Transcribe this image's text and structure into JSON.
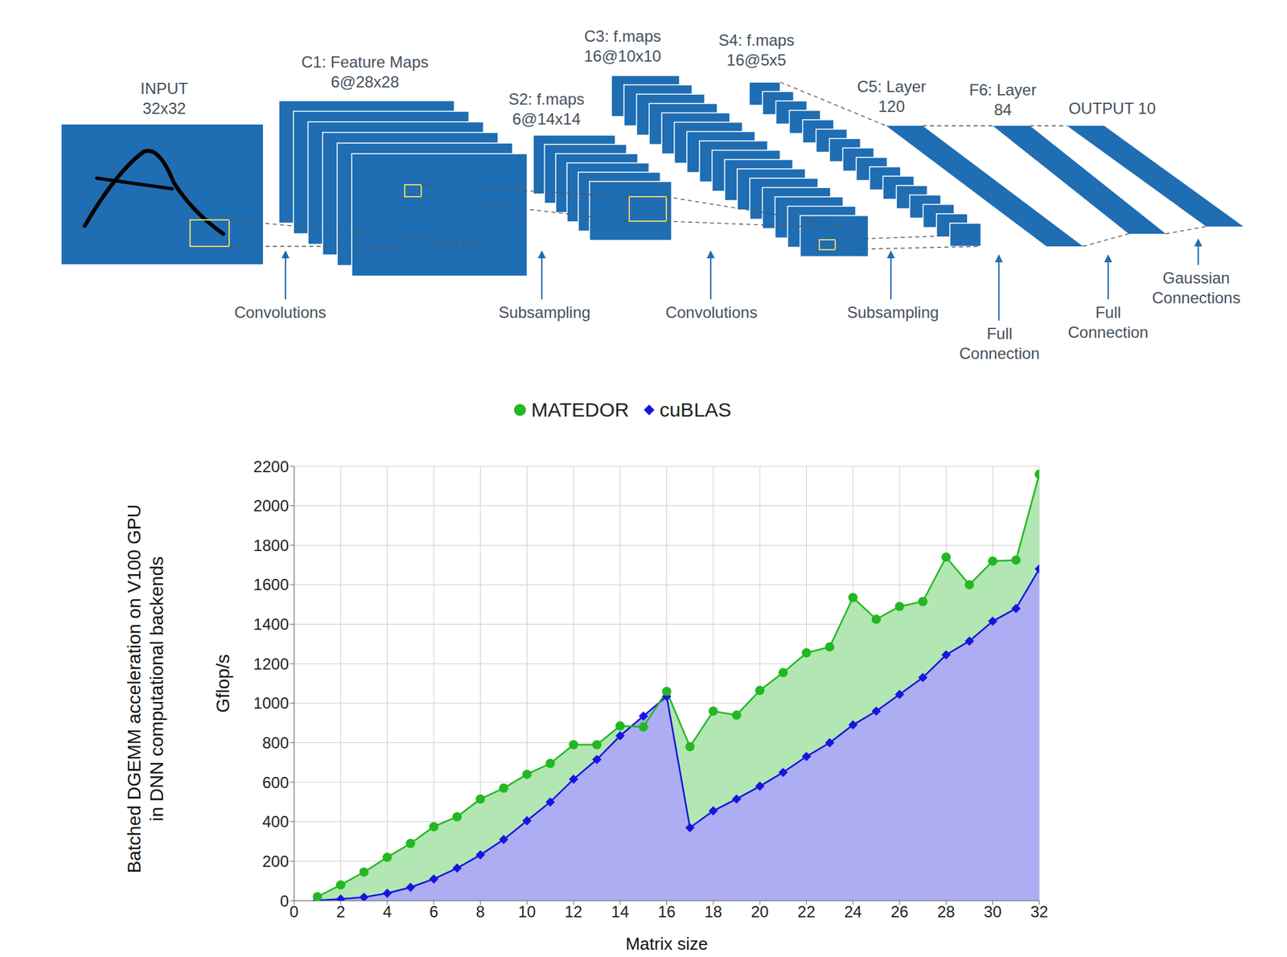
{
  "diagram": {
    "layers": [
      {
        "label": [
          "INPUT",
          "32x32"
        ]
      },
      {
        "label": [
          "C1: Feature Maps",
          "6@28x28"
        ],
        "count": 6
      },
      {
        "label": [
          "S2: f.maps",
          "6@14x14"
        ],
        "count": 6
      },
      {
        "label": [
          "C3: f.maps",
          "16@10x10"
        ],
        "count": 16
      },
      {
        "label": [
          "S4: f.maps",
          "16@5x5"
        ],
        "count": 16
      },
      {
        "label": [
          "C5: Layer",
          "120"
        ]
      },
      {
        "label": [
          "F6: Layer",
          "84"
        ]
      },
      {
        "label": [
          "OUTPUT 10"
        ]
      }
    ],
    "connections": [
      [
        "Convolutions"
      ],
      [
        "Subsampling"
      ],
      [
        "Convolutions"
      ],
      [
        "Subsampling"
      ],
      [
        "Full",
        "Connection"
      ],
      [
        "Full",
        "Connection"
      ],
      [
        "Gaussian",
        "Connections"
      ]
    ]
  },
  "chart_data": {
    "type": "area",
    "x": [
      1,
      2,
      3,
      4,
      5,
      6,
      7,
      8,
      9,
      10,
      11,
      12,
      13,
      14,
      15,
      16,
      17,
      18,
      19,
      20,
      21,
      22,
      23,
      24,
      25,
      26,
      27,
      28,
      29,
      30,
      31,
      32
    ],
    "series": [
      {
        "name": "MATEDOR",
        "color": "#22b822",
        "marker": "circle",
        "values": [
          20,
          80,
          145,
          220,
          290,
          375,
          425,
          515,
          570,
          640,
          695,
          790,
          790,
          885,
          880,
          1060,
          780,
          960,
          940,
          1065,
          1155,
          1255,
          1285,
          1535,
          1425,
          1490,
          1515,
          1740,
          1600,
          1720,
          1725,
          2160
        ]
      },
      {
        "name": "cuBLAS",
        "color": "#1515dd",
        "marker": "diamond",
        "values": [
          2,
          8,
          18,
          38,
          68,
          110,
          165,
          232,
          310,
          405,
          500,
          615,
          715,
          835,
          935,
          1035,
          370,
          455,
          515,
          580,
          650,
          730,
          800,
          890,
          960,
          1045,
          1130,
          1245,
          1315,
          1415,
          1480,
          1680
        ]
      }
    ],
    "xlabel": "Matrix size",
    "ylabel": "Gflop/s",
    "side_label": [
      "Batched DGEMM acceleration on V100 GPU",
      "in DNN computational backends"
    ],
    "xlim": [
      0,
      32
    ],
    "xticks": [
      0,
      2,
      4,
      6,
      8,
      10,
      12,
      14,
      16,
      18,
      20,
      22,
      24,
      26,
      28,
      30,
      32
    ],
    "ylim": [
      0,
      2200
    ],
    "yticks": [
      0,
      200,
      400,
      600,
      800,
      1000,
      1200,
      1400,
      1600,
      1800,
      2000,
      2200
    ],
    "grid": true,
    "legend": "top"
  }
}
